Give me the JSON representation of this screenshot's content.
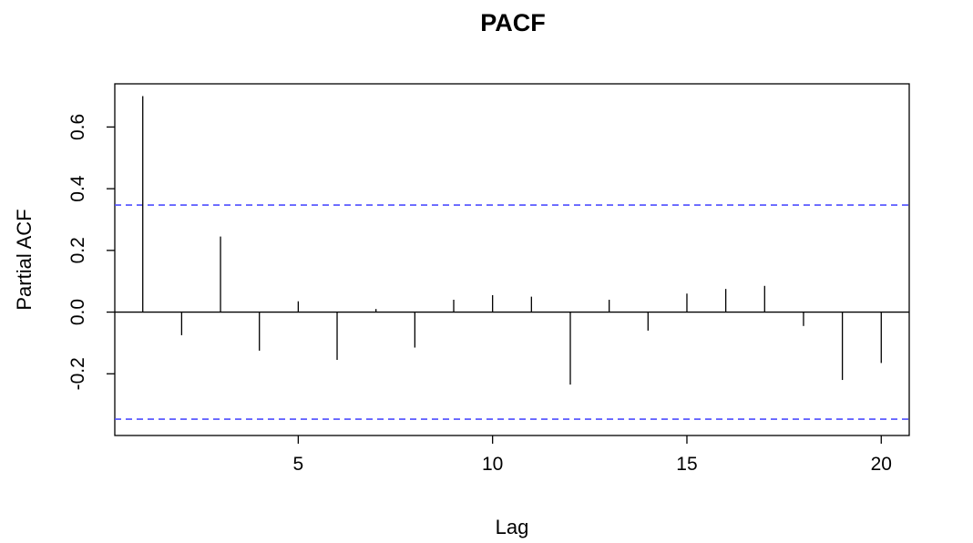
{
  "chart_data": {
    "type": "bar",
    "title": "PACF",
    "xlabel": "Lag",
    "ylabel": "Partial ACF",
    "xlim": [
      0.28,
      20.72
    ],
    "ylim": [
      -0.4,
      0.74
    ],
    "x_ticks": [
      5,
      10,
      15,
      20
    ],
    "y_ticks": [
      -0.2,
      0.0,
      0.2,
      0.4,
      0.6
    ],
    "y_tick_labels": [
      "-0.2",
      "0.0",
      "0.2",
      "0.4",
      "0.6"
    ],
    "lags": [
      1,
      2,
      3,
      4,
      5,
      6,
      7,
      8,
      9,
      10,
      11,
      12,
      13,
      14,
      15,
      16,
      17,
      18,
      19,
      20
    ],
    "values": [
      0.7,
      -0.075,
      0.245,
      -0.125,
      0.035,
      -0.155,
      0.01,
      -0.115,
      0.04,
      0.055,
      0.05,
      -0.235,
      0.04,
      -0.06,
      0.06,
      0.075,
      0.085,
      -0.045,
      -0.22,
      -0.165
    ],
    "confidence_bounds": [
      0.347,
      -0.347
    ],
    "confidence_line_color": "#4d4dff",
    "bar_color": "#000000",
    "zero_line": true,
    "grid": false,
    "legend": "none"
  }
}
